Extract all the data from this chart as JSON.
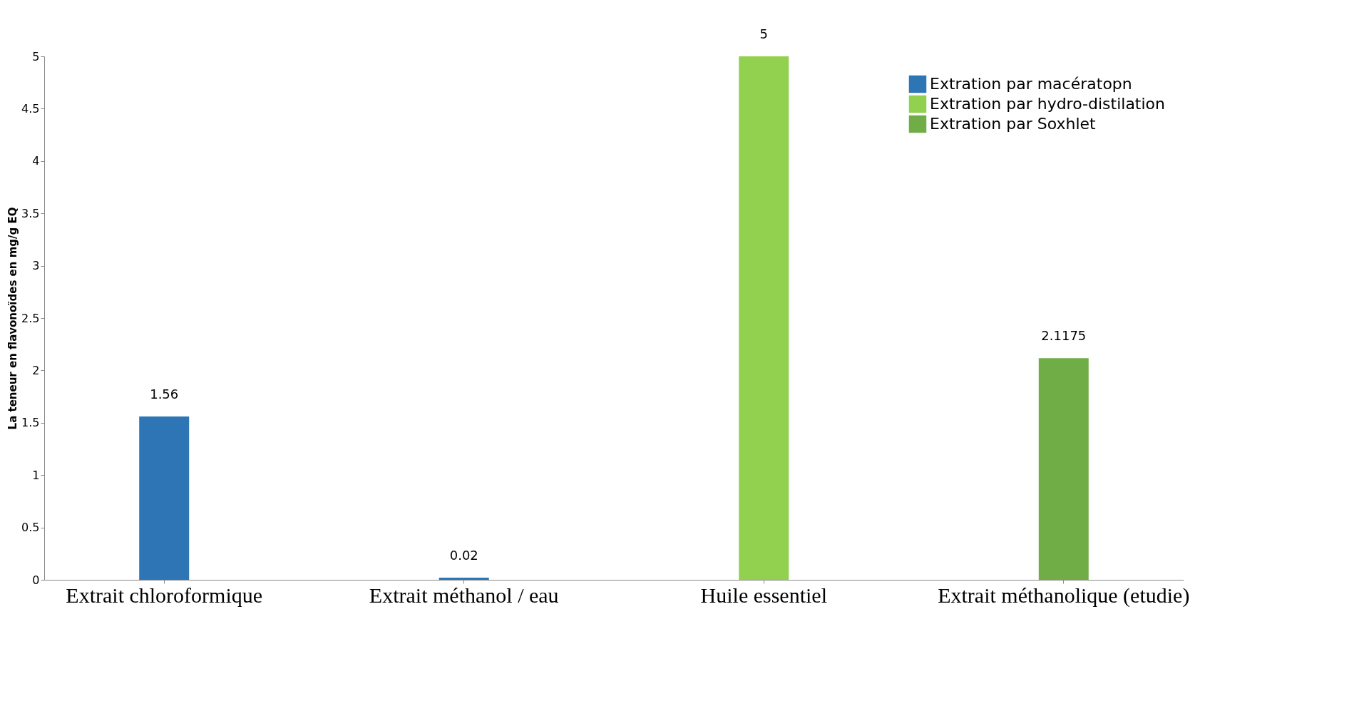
{
  "chart_data": {
    "type": "bar",
    "ylabel": "La teneur en flavonoïdes  en mg/g EQ",
    "categories": [
      "Extrait chloroformique",
      "Extrait méthanol / eau",
      "Huile essentiel",
      "Extrait méthanolique (etudie)"
    ],
    "series": [
      {
        "name": "Extration par macératopn",
        "color": "#2e75b6",
        "values": [
          1.56,
          0.02,
          null,
          null
        ]
      },
      {
        "name": "Extration par hydro-distilation",
        "color": "#92d050",
        "values": [
          null,
          null,
          5,
          null
        ]
      },
      {
        "name": "Extration par Soxhlet",
        "color": "#70ad47",
        "values": [
          null,
          null,
          null,
          2.1175
        ]
      }
    ],
    "ylim": [
      0,
      5
    ],
    "yticks": [
      0,
      0.5,
      1,
      1.5,
      2,
      2.5,
      3,
      3.5,
      4,
      4.5,
      5
    ],
    "data_labels": true,
    "grid": false,
    "legend": "top right"
  }
}
